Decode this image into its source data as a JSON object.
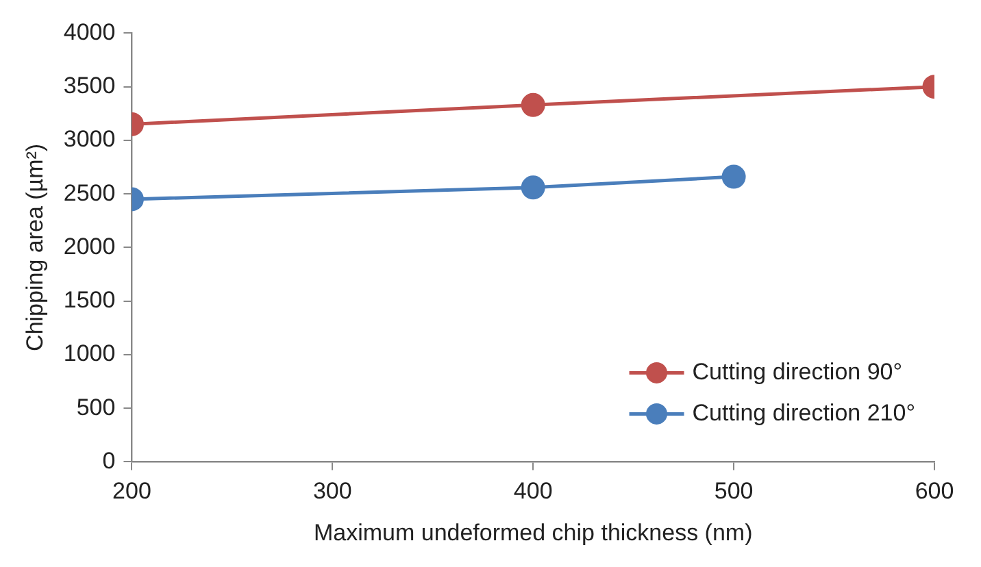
{
  "chart_data": {
    "type": "line",
    "xlabel": "Maximum undeformed chip thickness (nm)",
    "ylabel": "Chipping area (µm²)",
    "series": [
      {
        "name": "Cutting direction 90°",
        "color": "#c0504d",
        "x": [
          200,
          400,
          600
        ],
        "values": [
          3150,
          3330,
          3500
        ]
      },
      {
        "name": "Cutting direction 210°",
        "color": "#4a7ebb",
        "x": [
          200,
          400,
          500
        ],
        "values": [
          2450,
          2560,
          2660
        ]
      }
    ],
    "xlim": [
      200,
      600
    ],
    "xticks": [
      200,
      300,
      400,
      500,
      600
    ],
    "ylim": [
      0,
      4000
    ],
    "yticks": [
      0,
      500,
      1000,
      1500,
      2000,
      2500,
      3000,
      3500,
      4000
    ],
    "grid": false,
    "legend": "bottom right",
    "marker": "circle",
    "line_style": "solid"
  }
}
